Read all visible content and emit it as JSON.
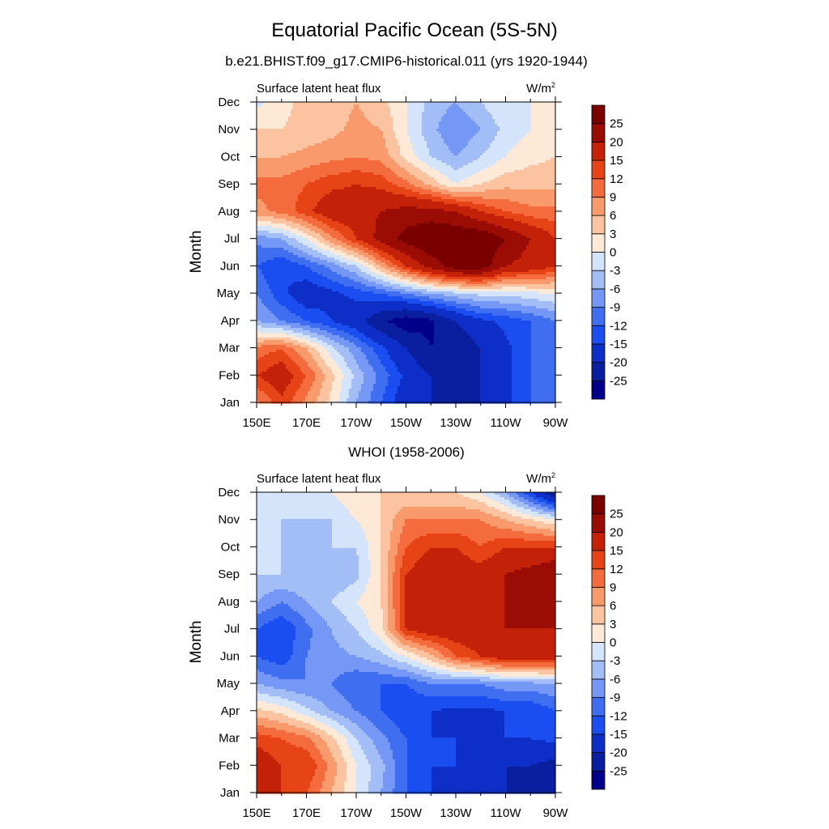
{
  "figure": {
    "title": "Equatorial Pacific Ocean (5S-5N)"
  },
  "chart_data": [
    {
      "type": "heatmap",
      "subtitle": "b.e21.BHIST.f09_g17.CMIP6-historical.011 (yrs 1920-1944)",
      "left_label": "Surface latent heat flux",
      "units_base": "W/m",
      "units_exp": "2",
      "ylabel": "Month",
      "x_ticks": [
        "150E",
        "170E",
        "170W",
        "150W",
        "130W",
        "110W",
        "90W"
      ],
      "y_ticks": [
        "Jan",
        "Feb",
        "Mar",
        "Apr",
        "May",
        "Jun",
        "Jul",
        "Aug",
        "Sep",
        "Oct",
        "Nov",
        "Dec"
      ],
      "colorbar_levels": [
        "-25",
        "-20",
        "-15",
        "-12",
        "-9",
        "-6",
        "-3",
        "0",
        "3",
        "6",
        "9",
        "12",
        "15",
        "20",
        "25"
      ],
      "lon": [
        150,
        160,
        170,
        180,
        190,
        200,
        210,
        220,
        230,
        240,
        250,
        260,
        270
      ],
      "values": [
        [
          8,
          14,
          8,
          2,
          -6,
          -12,
          -18,
          -20,
          -20,
          -20,
          -16,
          -12,
          -10
        ],
        [
          15,
          18,
          12,
          4,
          -4,
          -10,
          -16,
          -20,
          -22,
          -20,
          -16,
          -12,
          -10
        ],
        [
          10,
          12,
          6,
          -2,
          -8,
          -14,
          -20,
          -25,
          -24,
          -20,
          -16,
          -12,
          -10
        ],
        [
          -6,
          -9,
          -12,
          -15,
          -18,
          -24,
          -28,
          -26,
          -20,
          -16,
          -14,
          -12,
          -9
        ],
        [
          -9,
          -14,
          -18,
          -16,
          -14,
          -12,
          -9,
          -6,
          -4,
          -2,
          -2,
          -1,
          0
        ],
        [
          -12,
          -15,
          -12,
          -8,
          -3,
          6,
          15,
          22,
          28,
          28,
          20,
          18,
          15
        ],
        [
          -8,
          -6,
          0,
          8,
          15,
          22,
          27,
          30,
          30,
          30,
          25,
          20,
          15
        ],
        [
          8,
          10,
          14,
          18,
          18,
          20,
          22,
          22,
          20,
          15,
          12,
          10,
          10
        ],
        [
          10,
          10,
          12,
          14,
          15,
          14,
          10,
          5,
          0,
          3,
          5,
          5,
          5
        ],
        [
          6,
          6,
          7,
          8,
          9,
          8,
          2,
          -3,
          -6,
          -3,
          0,
          2,
          3
        ],
        [
          3,
          3,
          4,
          5,
          7,
          6,
          0,
          -5,
          -9,
          -6,
          -2,
          0,
          2
        ],
        [
          -1,
          2,
          4,
          4,
          6,
          4,
          0,
          -4,
          -6,
          -3,
          0,
          0,
          0
        ]
      ]
    },
    {
      "type": "heatmap",
      "subtitle": "WHOI (1958-2006)",
      "left_label": "Surface latent heat flux",
      "units_base": "W/m",
      "units_exp": "2",
      "ylabel": "Month",
      "x_ticks": [
        "150E",
        "170E",
        "170W",
        "150W",
        "130W",
        "110W",
        "90W"
      ],
      "y_ticks": [
        "Jan",
        "Feb",
        "Mar",
        "Apr",
        "May",
        "Jun",
        "Jul",
        "Aug",
        "Sep",
        "Oct",
        "Nov",
        "Dec"
      ],
      "colorbar_levels": [
        "-25",
        "-20",
        "-15",
        "-12",
        "-9",
        "-6",
        "-3",
        "0",
        "3",
        "6",
        "9",
        "12",
        "15",
        "20",
        "25"
      ],
      "lon": [
        150,
        160,
        170,
        180,
        190,
        200,
        210,
        220,
        230,
        240,
        250,
        260,
        270
      ],
      "values": [
        [
          15,
          15,
          12,
          6,
          0,
          -6,
          -12,
          -15,
          -18,
          -18,
          -20,
          -22,
          -25
        ],
        [
          18,
          15,
          15,
          8,
          0,
          -5,
          -12,
          -15,
          -15,
          -18,
          -20,
          -20,
          -22
        ],
        [
          14,
          12,
          10,
          4,
          -3,
          -8,
          -12,
          -15,
          -15,
          -15,
          -15,
          -15,
          -14
        ],
        [
          4,
          2,
          -2,
          -6,
          -9,
          -12,
          -15,
          -15,
          -16,
          -16,
          -15,
          -15,
          -12
        ],
        [
          -6,
          -8,
          -9,
          -9,
          -12,
          -12,
          -12,
          -9,
          -9,
          -9,
          -7,
          -7,
          -6
        ],
        [
          -12,
          -14,
          -9,
          -7,
          -6,
          -4,
          0,
          5,
          12,
          15,
          18,
          18,
          18
        ],
        [
          -12,
          -15,
          -10,
          -6,
          -3,
          2,
          15,
          18,
          18,
          18,
          20,
          20,
          20
        ],
        [
          -6,
          -9,
          -6,
          -3,
          0,
          3,
          15,
          20,
          20,
          18,
          20,
          22,
          22
        ],
        [
          -3,
          -3,
          -3,
          -6,
          -4,
          3,
          15,
          18,
          18,
          17,
          20,
          22,
          25
        ],
        [
          -3,
          -3,
          -5,
          -3,
          -3,
          3,
          12,
          15,
          15,
          12,
          15,
          15,
          15
        ],
        [
          0,
          -3,
          -3,
          -3,
          0,
          3,
          9,
          9,
          9,
          9,
          6,
          3,
          0
        ],
        [
          0,
          0,
          0,
          0,
          3,
          3,
          3,
          3,
          3,
          0,
          -6,
          -15,
          -25
        ]
      ]
    }
  ],
  "colors": {
    "palette": [
      "#00008b",
      "#0a1fa0",
      "#0d2fc8",
      "#1a4ef0",
      "#3f6ff0",
      "#7597f5",
      "#a3bdf7",
      "#d4e4fb",
      "#fde9d6",
      "#fbc3a0",
      "#f99a6c",
      "#f46c3e",
      "#e64416",
      "#c42208",
      "#9b0c04",
      "#7a0000"
    ],
    "background": "#ffffff"
  }
}
